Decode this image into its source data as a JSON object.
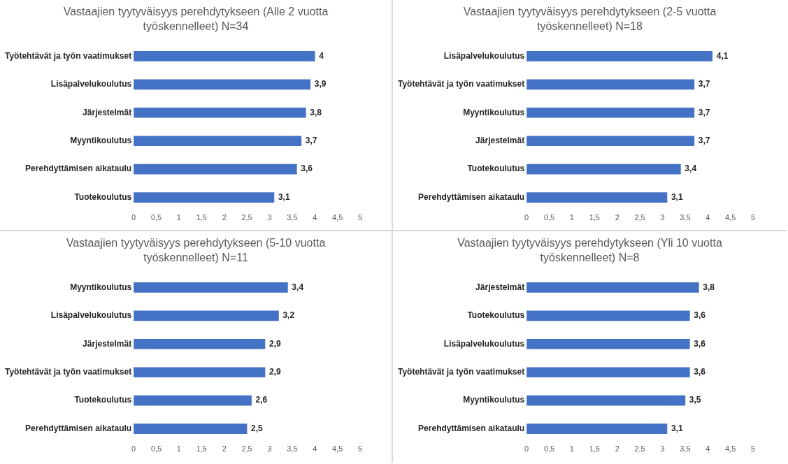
{
  "chart_data": [
    {
      "type": "bar",
      "orientation": "horizontal",
      "title": "Vastaajien tyytyväisyys perehdytykseen (Alle 2 vuotta työskennelleet) N=34",
      "categories": [
        "Työtehtävät ja työn vaatimukset",
        "Lisäpalvelukoulutus",
        "Järjestelmät",
        "Myyntikoulutus",
        "Perehdyttämisen aikataulu",
        "Tuotekoulutus"
      ],
      "values": [
        4,
        3.9,
        3.8,
        3.7,
        3.6,
        3.1
      ],
      "value_labels": [
        "4",
        "3,9",
        "3,8",
        "3,7",
        "3,6",
        "3,1"
      ],
      "color": "#4472c4",
      "xlim": [
        0,
        5
      ],
      "xticks": [
        0,
        {
          "value": 0.5,
          "label": "0,5"
        },
        1,
        {
          "value": 1.5,
          "label": "1,5"
        },
        2,
        {
          "value": 2.5,
          "label": "2,5"
        },
        3,
        {
          "value": 3.5,
          "label": "3,5"
        },
        4,
        {
          "value": 4.5,
          "label": "4,5"
        },
        5
      ],
      "grid": false
    },
    {
      "type": "bar",
      "orientation": "horizontal",
      "title": "Vastaajien tyytyväisyys perehdytykseen (2-5 vuotta työskennelleet) N=18",
      "categories": [
        "Lisäpalvelukoulutus",
        "Työtehtävät ja työn vaatimukset",
        "Myyntikoulutus",
        "Järjestelmät",
        "Tuotekoulutus",
        "Perehdyttämisen aikataulu"
      ],
      "values": [
        4.1,
        3.7,
        3.7,
        3.7,
        3.4,
        3.1
      ],
      "value_labels": [
        "4,1",
        "3,7",
        "3,7",
        "3,7",
        "3,4",
        "3,1"
      ],
      "color": "#4472c4",
      "xlim": [
        0,
        5
      ],
      "xticks": [
        0,
        {
          "value": 0.5,
          "label": "0,5"
        },
        1,
        {
          "value": 1.5,
          "label": "1,5"
        },
        2,
        {
          "value": 2.5,
          "label": "2,5"
        },
        3,
        {
          "value": 3.5,
          "label": "3,5"
        },
        4,
        {
          "value": 4.5,
          "label": "4,5"
        },
        5
      ],
      "grid": false
    },
    {
      "type": "bar",
      "orientation": "horizontal",
      "title": "Vastaajien tyytyväisyys perehdytykseen (5-10 vuotta työskennelleet) N=11",
      "categories": [
        "Myyntikoulutus",
        "Lisäpalvelukoulutus",
        "Järjestelmät",
        "Työtehtävät ja työn vaatimukset",
        "Tuotekoulutus",
        "Perehdyttämisen aikataulu"
      ],
      "values": [
        3.4,
        3.2,
        2.9,
        2.9,
        2.6,
        2.5
      ],
      "value_labels": [
        "3,4",
        "3,2",
        "2,9",
        "2,9",
        "2,6",
        "2,5"
      ],
      "color": "#4472c4",
      "xlim": [
        0,
        5
      ],
      "xticks": [
        0,
        {
          "value": 0.5,
          "label": "0,5"
        },
        1,
        {
          "value": 1.5,
          "label": "1,5"
        },
        2,
        {
          "value": 2.5,
          "label": "2,5"
        },
        3,
        {
          "value": 3.5,
          "label": "3,5"
        },
        4,
        {
          "value": 4.5,
          "label": "4,5"
        },
        5
      ],
      "grid": false
    },
    {
      "type": "bar",
      "orientation": "horizontal",
      "title": "Vastaajien tyytyväisyys perehdytykseen (Yli 10 vuotta työskennelleet) N=8",
      "categories": [
        "Järjestelmät",
        "Tuotekoulutus",
        "Lisäpalvelukoulutus",
        "Työtehtävät ja työn vaatimukset",
        "Myyntikoulutus",
        "Perehdyttämisen aikataulu"
      ],
      "values": [
        3.8,
        3.6,
        3.6,
        3.6,
        3.5,
        3.1
      ],
      "value_labels": [
        "3,8",
        "3,6",
        "3,6",
        "3,6",
        "3,5",
        "3,1"
      ],
      "color": "#4472c4",
      "xlim": [
        0,
        5
      ],
      "xticks": [
        0,
        {
          "value": 0.5,
          "label": "0,5"
        },
        1,
        {
          "value": 1.5,
          "label": "1,5"
        },
        2,
        {
          "value": 2.5,
          "label": "2,5"
        },
        3,
        {
          "value": 3.5,
          "label": "3,5"
        },
        4,
        {
          "value": 4.5,
          "label": "4,5"
        },
        5
      ],
      "grid": false
    }
  ]
}
